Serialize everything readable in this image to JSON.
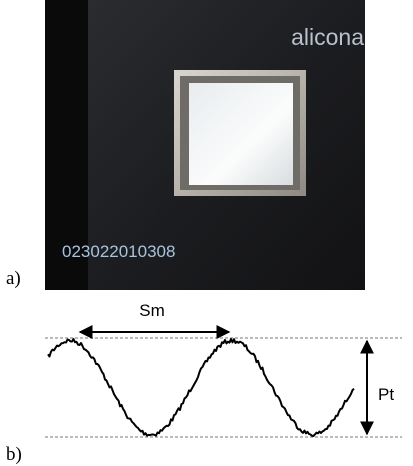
{
  "panel_a": {
    "brand": "alicona",
    "serial": "023022010308",
    "label": "a)"
  },
  "panel_b": {
    "sm": "Sm",
    "pt": "Pt",
    "label": "b)"
  }
}
